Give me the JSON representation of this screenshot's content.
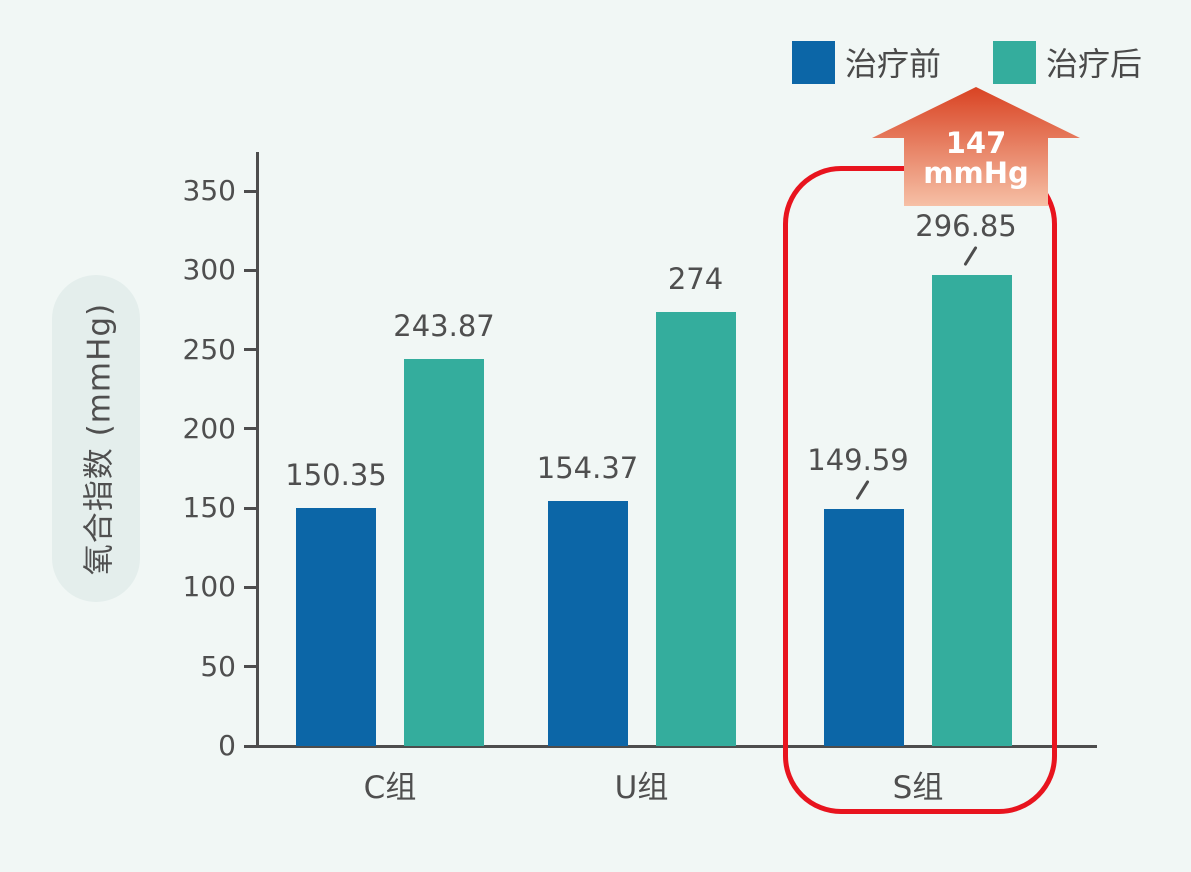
{
  "colors": {
    "background": "#f1f7f5",
    "bar_before": "#0c66a7",
    "bar_after": "#34ad9d",
    "highlight_red": "#e8141e",
    "axis": "#4d4d4d",
    "text": "#4f4f4f",
    "arrow_gradient_top": "#d94323",
    "arrow_gradient_bottom": "#f6c0a6",
    "y_title_pill": "#e4eeec"
  },
  "legend": {
    "items": [
      {
        "label": "治疗前",
        "color": "#0c66a7"
      },
      {
        "label": "治疗后",
        "color": "#34ad9d"
      }
    ]
  },
  "annotation": {
    "value": "147",
    "unit": "mmHg"
  },
  "chart_data": {
    "type": "bar",
    "title": "",
    "ylabel": "氧合指数 (mmHg)",
    "xlabel": "",
    "categories": [
      "C组",
      "U组",
      "S组"
    ],
    "series": [
      {
        "name": "治疗前",
        "color": "#0c66a7",
        "values": [
          150.35,
          154.37,
          149.59
        ]
      },
      {
        "name": "治疗后",
        "color": "#34ad9d",
        "values": [
          243.87,
          274,
          296.85
        ]
      }
    ],
    "value_labels": [
      [
        "150.35",
        "154.37",
        "149.59"
      ],
      [
        "243.87",
        "274",
        "296.85"
      ]
    ],
    "ylim": [
      0,
      350
    ],
    "yticks": [
      0,
      50,
      100,
      150,
      200,
      250,
      300,
      350
    ],
    "grid": "off",
    "legend_position": "top-right",
    "highlighted_category": "S组",
    "highlight_annotation": "147 mmHg"
  }
}
